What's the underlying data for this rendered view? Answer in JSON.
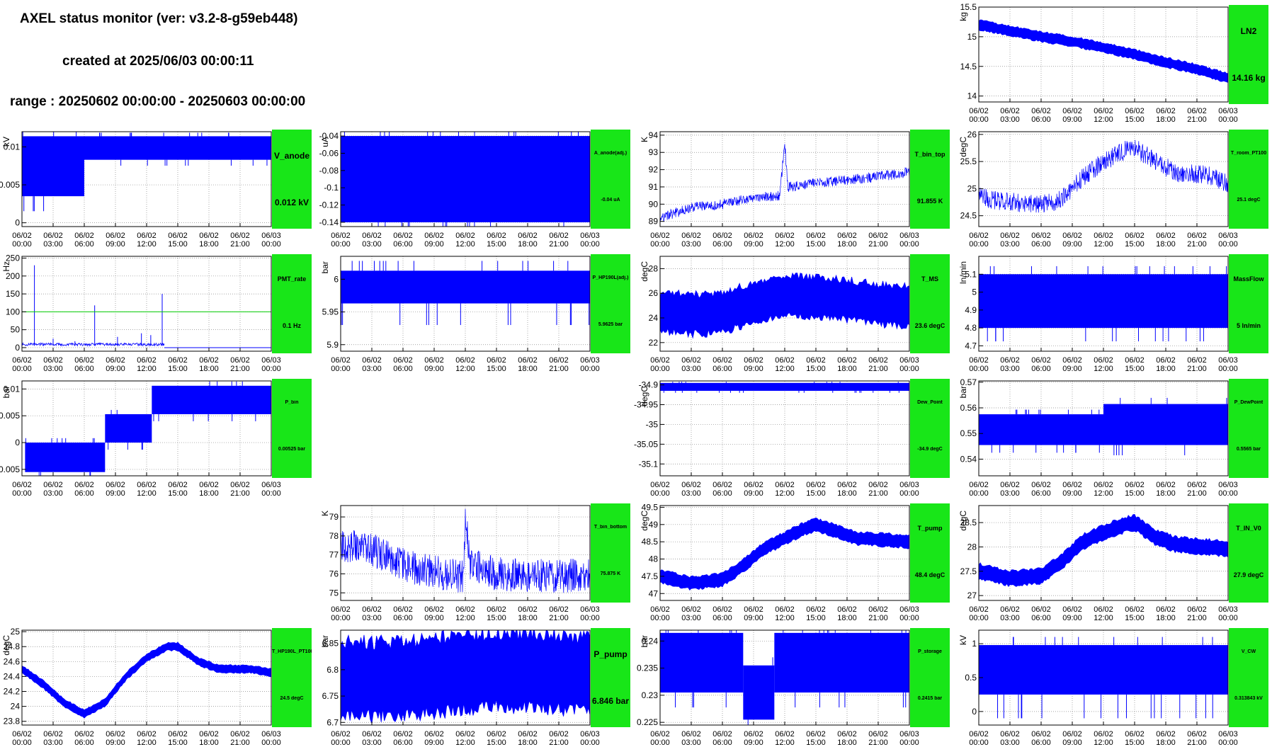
{
  "header": {
    "title": "AXEL status monitor (ver: v3.2-8-g59eb448)",
    "created": "created at 2025/06/03 00:00:11",
    "range": "range : 20250602 00:00:00 - 20250603 00:00:00"
  },
  "x_ticks": [
    [
      "06/02",
      "00:00"
    ],
    [
      "06/02",
      "03:00"
    ],
    [
      "06/02",
      "06:00"
    ],
    [
      "06/02",
      "09:00"
    ],
    [
      "06/02",
      "12:00"
    ],
    [
      "06/02",
      "15:00"
    ],
    [
      "06/02",
      "18:00"
    ],
    [
      "06/02",
      "21:00"
    ],
    [
      "06/03",
      "00:00"
    ]
  ],
  "colors": {
    "trace": "#0000ff",
    "stat_box": "#18e618",
    "threshold": "#00cc00",
    "grid": "#888888"
  },
  "panels": [
    {
      "id": "LN2",
      "col": 3,
      "row": 0,
      "unit": "kg",
      "name": "LN2",
      "value_label": "14.16 kg",
      "size": "l",
      "y_ticks": [
        "14",
        "14.5",
        "15",
        "15.5"
      ],
      "ylim": [
        13.9,
        15.5
      ],
      "chart_data": {
        "type": "line",
        "shape": "band",
        "x_hours": [
          0,
          3,
          6,
          9,
          12,
          15,
          18,
          21,
          24
        ],
        "y_center": [
          15.2,
          15.1,
          15.0,
          14.92,
          14.82,
          14.7,
          14.57,
          14.45,
          14.3
        ],
        "y_halfwidth": 0.08
      }
    },
    {
      "id": "V_anode",
      "col": 0,
      "row": 1,
      "unit": "kV",
      "name": "V_anode",
      "value_label": "0.012 kV",
      "size": "l",
      "y_ticks": [
        "0",
        "0.005",
        "0.01"
      ],
      "ylim": [
        -0.0005,
        0.012
      ],
      "chart_data": {
        "type": "line",
        "shape": "step_band",
        "segments": [
          {
            "x": [
              0,
              6
            ],
            "low": 0.0035,
            "high": 0.0114
          },
          {
            "x": [
              6,
              24
            ],
            "low": 0.0083,
            "high": 0.0114
          }
        ]
      }
    },
    {
      "id": "A_anode",
      "col": 1,
      "row": 1,
      "unit": "uA",
      "name": "A_anode(adj.)",
      "value_label": "-0.04 uA",
      "size": "s",
      "y_ticks": [
        "-0.14",
        "-0.12",
        "-0.1",
        "-0.08",
        "-0.06",
        "-0.04"
      ],
      "ylim": [
        -0.145,
        -0.035
      ],
      "chart_data": {
        "type": "line",
        "shape": "step_band",
        "segments": [
          {
            "x": [
              0,
              24
            ],
            "low": -0.14,
            "high": -0.04
          }
        ]
      }
    },
    {
      "id": "T_bin_top",
      "col": 2,
      "row": 1,
      "unit": "K",
      "name": "T_bin_top",
      "value_label": "91.855 K",
      "size": "m",
      "y_ticks": [
        "89",
        "90",
        "91",
        "92",
        "93",
        "94"
      ],
      "ylim": [
        88.7,
        94.2
      ],
      "chart_data": {
        "type": "line",
        "shape": "noisy_trend",
        "x_hours": [
          0,
          3,
          6,
          9,
          11.5,
          12,
          12.3,
          15,
          18,
          21,
          24
        ],
        "y": [
          89.2,
          89.8,
          90.0,
          90.4,
          90.5,
          93.5,
          91.0,
          91.2,
          91.4,
          91.6,
          91.85
        ],
        "noise": 0.3
      }
    },
    {
      "id": "T_room_PT100",
      "col": 3,
      "row": 1,
      "unit": "degC",
      "name": "T_room_PT100",
      "value_label": "25.1 degC",
      "size": "s",
      "y_ticks": [
        "24.5",
        "25",
        "25.5",
        "26"
      ],
      "ylim": [
        24.3,
        26.05
      ],
      "chart_data": {
        "type": "line",
        "shape": "noisy_trend",
        "x_hours": [
          0,
          3,
          6,
          8,
          10,
          12,
          14,
          15,
          17,
          19,
          22,
          24
        ],
        "y": [
          24.85,
          24.75,
          24.7,
          24.8,
          25.2,
          25.5,
          25.7,
          25.75,
          25.5,
          25.3,
          25.25,
          25.1
        ],
        "noise": 0.18
      }
    },
    {
      "id": "PMT_rate",
      "col": 0,
      "row": 2,
      "unit": "Hz",
      "name": "PMT_rate",
      "value_label": "0.1 Hz",
      "size": "m",
      "y_ticks": [
        "0",
        "50",
        "100",
        "150",
        "200",
        "250"
      ],
      "ylim": [
        -10,
        255
      ],
      "threshold": 100,
      "chart_data": {
        "type": "line",
        "shape": "spikes",
        "x_range": [
          0,
          13.7
        ],
        "base": 5,
        "spikes": [
          [
            1.2,
            230
          ],
          [
            7.0,
            118
          ],
          [
            13.5,
            150
          ],
          [
            11.5,
            40
          ],
          [
            3.0,
            25
          ],
          [
            9.2,
            30
          ],
          [
            5.1,
            18
          ],
          [
            12.4,
            35
          ]
        ]
      }
    },
    {
      "id": "P_HP190L",
      "col": 1,
      "row": 2,
      "unit": "bar",
      "name": "P_HP190L(adj.)",
      "value_label": "5.9625 bar",
      "size": "s",
      "y_ticks": [
        "5.9",
        "5.95",
        "6"
      ],
      "ylim": [
        5.89,
        6.035
      ],
      "chart_data": {
        "type": "line",
        "shape": "step_band",
        "segments": [
          {
            "x": [
              0,
              24
            ],
            "low": 5.963,
            "high": 6.013
          }
        ],
        "extra_up": 6.028,
        "extra_down": 5.93
      }
    },
    {
      "id": "T_MS",
      "col": 2,
      "row": 2,
      "unit": "degC",
      "name": "T_MS",
      "value_label": "23.6 degC",
      "size": "m",
      "y_ticks": [
        "22",
        "24",
        "26",
        "28"
      ],
      "ylim": [
        21.3,
        29.0
      ],
      "chart_data": {
        "type": "line",
        "shape": "band",
        "x_hours": [
          0,
          3,
          6,
          9,
          12,
          15,
          18,
          21,
          24
        ],
        "y_center": [
          24.5,
          24.3,
          24.4,
          25.3,
          25.8,
          25.7,
          25.5,
          25.1,
          25.0
        ],
        "y_halfwidth": 1.6
      }
    },
    {
      "id": "MassFlow",
      "col": 3,
      "row": 2,
      "unit": "ln/min",
      "name": "MassFlow",
      "value_label": "5 ln/min",
      "size": "m",
      "y_ticks": [
        "4.7",
        "4.8",
        "4.9",
        "5",
        "5.1"
      ],
      "ylim": [
        4.67,
        5.2
      ],
      "chart_data": {
        "type": "line",
        "shape": "step_band",
        "segments": [
          {
            "x": [
              0,
              24
            ],
            "low": 4.8,
            "high": 5.1
          }
        ]
      }
    },
    {
      "id": "P_bin",
      "col": 0,
      "row": 3,
      "unit": "bar",
      "name": "P_bin",
      "value_label": "0.00525 bar",
      "size": "s",
      "y_ticks": [
        "-0.005",
        "0",
        "0.005",
        "0.01"
      ],
      "ylim": [
        -0.0062,
        0.0115
      ],
      "chart_data": {
        "type": "line",
        "shape": "step_band",
        "segments": [
          {
            "x": [
              0.3,
              8.0
            ],
            "low": -0.0055,
            "high": 0.0
          },
          {
            "x": [
              8.0,
              12.5
            ],
            "low": 0.0,
            "high": 0.0053
          },
          {
            "x": [
              12.5,
              24
            ],
            "low": 0.0053,
            "high": 0.0106
          }
        ]
      }
    },
    {
      "id": "Dew_Point",
      "col": 2,
      "row": 3,
      "unit": "degC",
      "name": "Dew_Point",
      "value_label": "-34.9 degC",
      "size": "s",
      "y_ticks": [
        "-35.1",
        "-35.05",
        "-35",
        "-34.95",
        "-34.9"
      ],
      "ylim": [
        -35.13,
        -34.89
      ],
      "chart_data": {
        "type": "line",
        "shape": "step_band",
        "segments": [
          {
            "x": [
              0,
              24
            ],
            "low": -34.915,
            "high": -34.895
          }
        ]
      }
    },
    {
      "id": "P_DewPoint",
      "col": 3,
      "row": 3,
      "unit": "bar",
      "name": "P_DewPoint",
      "value_label": "0.5565 bar",
      "size": "s",
      "y_ticks": [
        "0.54",
        "0.55",
        "0.56",
        "0.57"
      ],
      "ylim": [
        0.5335,
        0.5705
      ],
      "chart_data": {
        "type": "line",
        "shape": "step_band",
        "segments": [
          {
            "x": [
              0,
              12
            ],
            "low": 0.5455,
            "high": 0.5575
          },
          {
            "x": [
              12,
              24
            ],
            "low": 0.5455,
            "high": 0.5615
          }
        ]
      }
    },
    {
      "id": "T_bin_bottom",
      "col": 1,
      "row": 4,
      "unit": "K",
      "name": "T_bin_bottom",
      "value_label": "75.875 K",
      "size": "s",
      "y_ticks": [
        "75",
        "76",
        "77",
        "78",
        "79"
      ],
      "ylim": [
        74.6,
        79.6
      ],
      "chart_data": {
        "type": "line",
        "shape": "noisy_trend",
        "x_hours": [
          0,
          3,
          6,
          8,
          10,
          11.8,
          12,
          12.5,
          15,
          18,
          21,
          24
        ],
        "y": [
          77.5,
          77.3,
          76.5,
          76.2,
          76.0,
          75.8,
          79.0,
          76.5,
          76.0,
          75.9,
          75.9,
          75.9
        ],
        "noise": 0.9
      }
    },
    {
      "id": "T_pump",
      "col": 2,
      "row": 4,
      "unit": "degC",
      "name": "T_pump",
      "value_label": "48.4 degC",
      "size": "m",
      "y_ticks": [
        "47",
        "47.5",
        "48",
        "48.5",
        "49",
        "49.5"
      ],
      "ylim": [
        46.8,
        49.55
      ],
      "chart_data": {
        "type": "line",
        "shape": "band",
        "x_hours": [
          0,
          3,
          6,
          8,
          10,
          12,
          14,
          15,
          17,
          19,
          22,
          24
        ],
        "y_center": [
          47.5,
          47.3,
          47.4,
          47.8,
          48.3,
          48.6,
          48.9,
          49.0,
          48.8,
          48.6,
          48.55,
          48.5
        ],
        "y_halfwidth": 0.18
      }
    },
    {
      "id": "T_IN_V0",
      "col": 3,
      "row": 4,
      "unit": "degC",
      "name": "T_IN_V0",
      "value_label": "27.9 degC",
      "size": "m",
      "y_ticks": [
        "27",
        "27.5",
        "28",
        "28.5"
      ],
      "ylim": [
        26.9,
        28.85
      ],
      "chart_data": {
        "type": "line",
        "shape": "band",
        "x_hours": [
          0,
          3,
          6,
          8,
          10,
          12,
          14,
          15,
          17,
          19,
          22,
          24
        ],
        "y_center": [
          27.5,
          27.35,
          27.4,
          27.7,
          28.1,
          28.3,
          28.45,
          28.5,
          28.2,
          28.05,
          28.0,
          27.95
        ],
        "y_halfwidth": 0.15
      }
    },
    {
      "id": "T_HP190L_PT100",
      "col": 0,
      "row": 5,
      "unit": "degC",
      "name": "T_HP190L_PT100",
      "value_label": "24.5 degC",
      "size": "s",
      "y_ticks": [
        "23.8",
        "24",
        "24.2",
        "24.4",
        "24.6",
        "24.8",
        "25"
      ],
      "ylim": [
        23.75,
        25.02
      ],
      "chart_data": {
        "type": "line",
        "shape": "band",
        "x_hours": [
          0,
          2,
          4,
          6,
          8,
          10,
          12,
          14,
          15,
          17,
          19,
          22,
          24
        ],
        "y_center": [
          24.5,
          24.3,
          24.05,
          23.9,
          24.05,
          24.4,
          24.65,
          24.8,
          24.8,
          24.6,
          24.5,
          24.5,
          24.45
        ],
        "y_halfwidth": 0.05
      }
    },
    {
      "id": "P_pump",
      "col": 1,
      "row": 5,
      "unit": "bar",
      "name": "P_pump",
      "value_label": "6.846 bar",
      "size": "l",
      "y_ticks": [
        "6.7",
        "6.75",
        "6.8",
        "6.85"
      ],
      "ylim": [
        6.695,
        6.875
      ],
      "chart_data": {
        "type": "line",
        "shape": "band",
        "x_hours": [
          0,
          3,
          6,
          9,
          12,
          15,
          18,
          21,
          24
        ],
        "y_center": [
          6.785,
          6.782,
          6.783,
          6.788,
          6.795,
          6.8,
          6.798,
          6.795,
          6.79
        ],
        "y_halfwidth": 0.07
      }
    },
    {
      "id": "P_storage",
      "col": 2,
      "row": 5,
      "unit": "bar",
      "name": "P_storage",
      "value_label": "0.2415 bar",
      "size": "s",
      "y_ticks": [
        "0.225",
        "0.23",
        "0.235",
        "0.24"
      ],
      "ylim": [
        0.2245,
        0.242
      ],
      "chart_data": {
        "type": "line",
        "shape": "step_band",
        "segments": [
          {
            "x": [
              0,
              8
            ],
            "low": 0.2305,
            "high": 0.2415
          },
          {
            "x": [
              8,
              11
            ],
            "low": 0.2255,
            "high": 0.2355
          },
          {
            "x": [
              11,
              24
            ],
            "low": 0.2305,
            "high": 0.2415
          }
        ]
      }
    },
    {
      "id": "V_CW",
      "col": 3,
      "row": 5,
      "unit": "kV",
      "name": "V_CW",
      "value_label": "0.313843 kV",
      "size": "s",
      "y_ticks": [
        "0",
        "0.5",
        "1"
      ],
      "ylim": [
        -0.2,
        1.2
      ],
      "chart_data": {
        "type": "line",
        "shape": "step_band",
        "segments": [
          {
            "x": [
              0,
              24
            ],
            "low": 0.25,
            "high": 0.98
          }
        ],
        "extra_up": 1.1,
        "extra_down": -0.1
      }
    }
  ]
}
